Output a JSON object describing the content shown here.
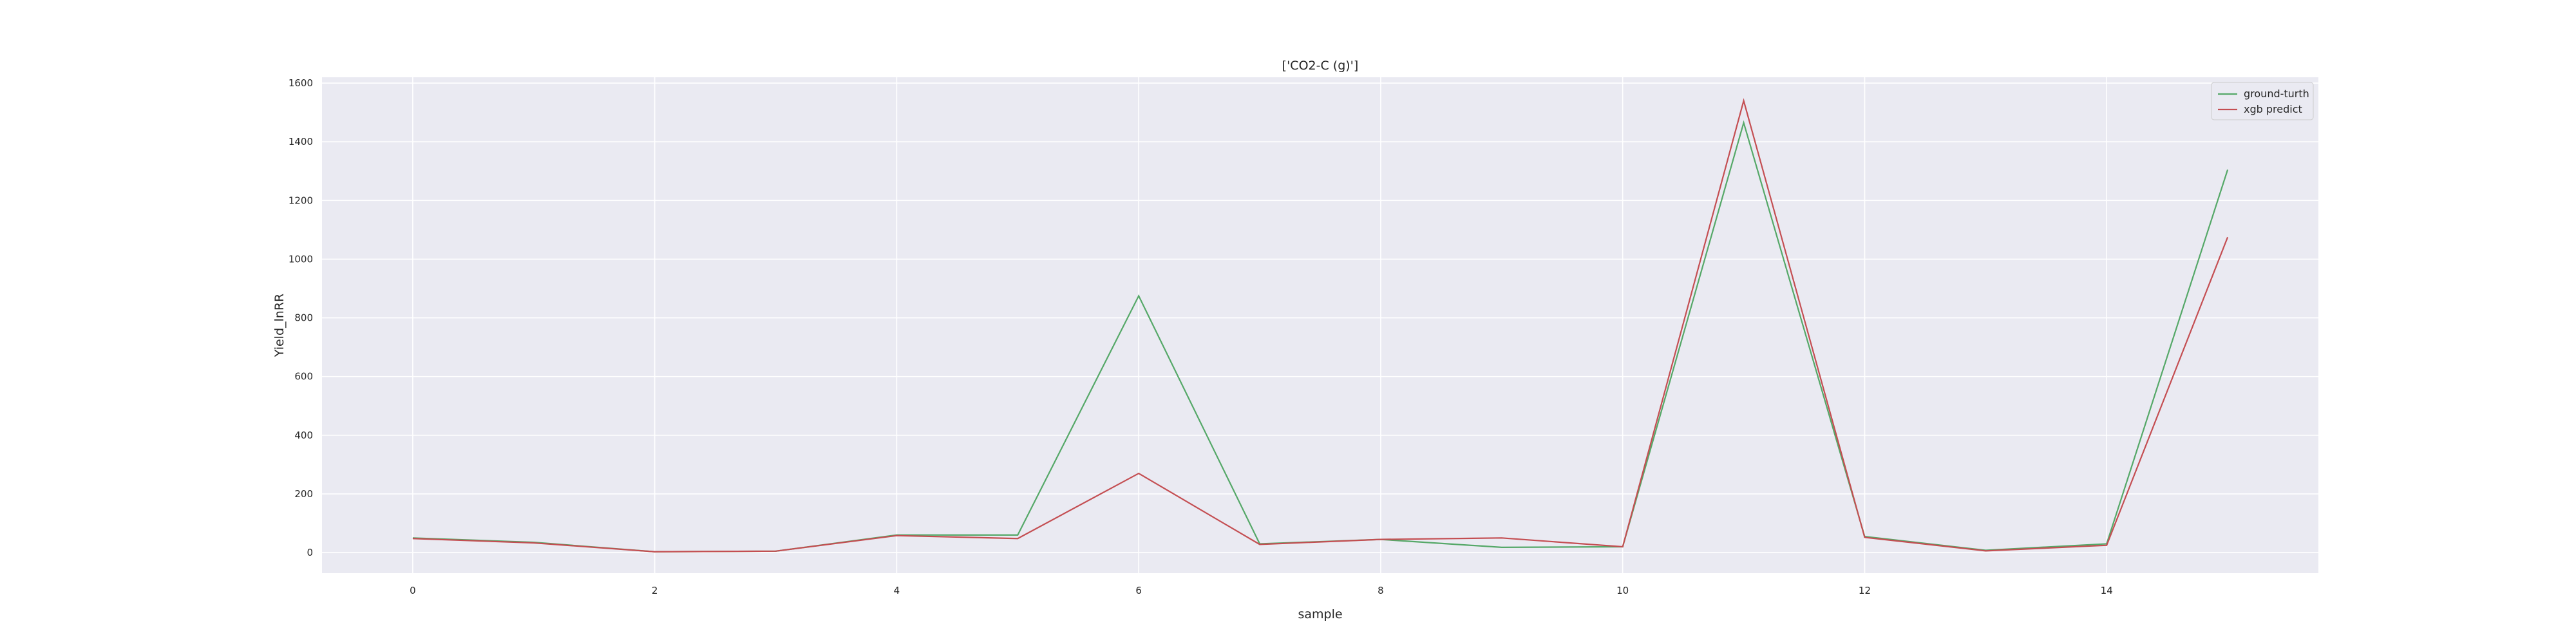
{
  "chart_data": {
    "type": "line",
    "title": "['CO2-C (g)']",
    "xlabel": "sample",
    "ylabel": "Yield_lnRR",
    "xlim": [
      -0.75,
      15.75
    ],
    "ylim": [
      -70,
      1620
    ],
    "xticks": [
      0,
      2,
      4,
      6,
      8,
      10,
      12,
      14
    ],
    "yticks": [
      0,
      200,
      400,
      600,
      800,
      1000,
      1200,
      1400,
      1600
    ],
    "grid": true,
    "legend_position": "top-right",
    "x": [
      0,
      1,
      2,
      3,
      4,
      5,
      6,
      7,
      8,
      9,
      10,
      11,
      12,
      13,
      14,
      15
    ],
    "series": [
      {
        "name": "ground-turth",
        "color": "#55a868",
        "values": [
          50,
          35,
          3,
          5,
          60,
          60,
          875,
          30,
          45,
          18,
          20,
          1465,
          55,
          8,
          30,
          1305
        ]
      },
      {
        "name": "xgb predict",
        "color": "#c44e52",
        "values": [
          48,
          33,
          3,
          5,
          58,
          48,
          270,
          28,
          45,
          50,
          20,
          1540,
          52,
          6,
          25,
          1075
        ]
      }
    ]
  }
}
